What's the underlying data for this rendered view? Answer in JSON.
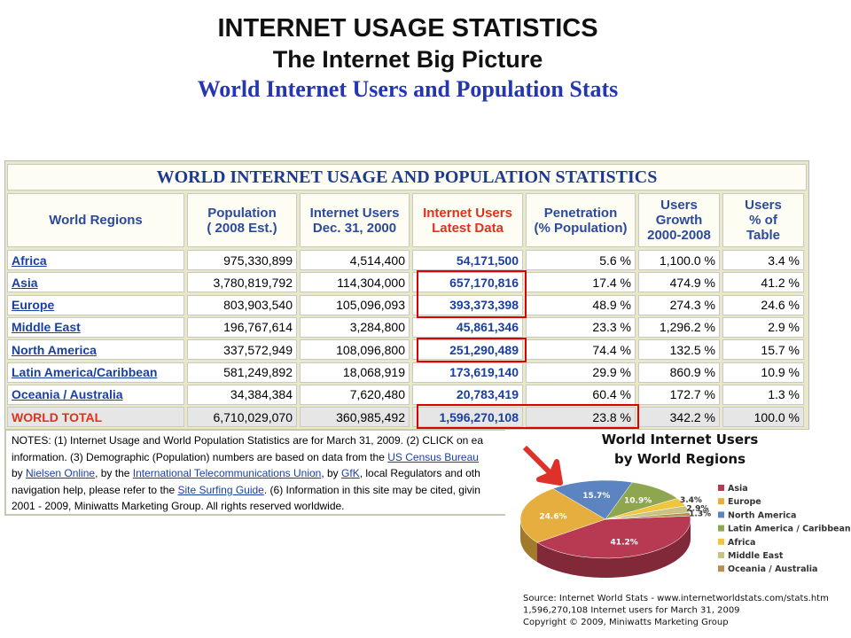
{
  "header": {
    "title": "INTERNET USAGE STATISTICS",
    "subtitle": "The Internet Big Picture",
    "heading": "World Internet Users and Population Stats"
  },
  "table": {
    "title": "WORLD INTERNET USAGE AND POPULATION STATISTICS",
    "columns": [
      "World Regions",
      "Population\n( 2008 Est.)",
      "Internet Users\nDec. 31, 2000",
      "Internet Users\nLatest Data",
      "Penetration\n(% Population)",
      "Users\nGrowth\n2000-2008",
      "Users\n% of\nTable"
    ],
    "rows": [
      [
        "Africa",
        "975,330,899",
        "4,514,400",
        "54,171,500",
        "5.6 %",
        "1,100.0 %",
        "3.4 %"
      ],
      [
        "Asia",
        "3,780,819,792",
        "114,304,000",
        "657,170,816",
        "17.4 %",
        "474.9 %",
        "41.2 %"
      ],
      [
        "Europe",
        "803,903,540",
        "105,096,093",
        "393,373,398",
        "48.9 %",
        "274.3 %",
        "24.6 %"
      ],
      [
        "Middle East",
        "196,767,614",
        "3,284,800",
        "45,861,346",
        "23.3 %",
        "1,296.2 %",
        "2.9 %"
      ],
      [
        "North America",
        "337,572,949",
        "108,096,800",
        "251,290,489",
        "74.4 %",
        "132.5 %",
        "15.7 %"
      ],
      [
        "Latin America/Caribbean",
        "581,249,892",
        "18,068,919",
        "173,619,140",
        "29.9 %",
        "860.9 %",
        "10.9 %"
      ],
      [
        "Oceania / Australia",
        "34,384,384",
        "7,620,480",
        "20,783,419",
        "60.4 %",
        "172.7 %",
        "1.3 %"
      ],
      [
        "WORLD TOTAL",
        "6,710,029,070",
        "360,985,492",
        "1,596,270,108",
        "23.8 %",
        "342.2 %",
        "100.0 %"
      ]
    ]
  },
  "notes": {
    "lines": [
      [
        "NOTES: (1) Internet Usage and World Population Statistics are for March 31, 2009. (2) CLICK on ea"
      ],
      [
        "information. (3) Demographic (Population) numbers are based on data from the ",
        {
          "link": "US Census Bureau"
        }
      ],
      [
        "by ",
        {
          "link": "Nielsen Online"
        },
        ", by the ",
        {
          "link": "International Telecommunications Union"
        },
        ", by ",
        {
          "link": "GfK"
        },
        ", local Regulators and oth"
      ],
      [
        "navigation help, please refer to the ",
        {
          "link": "Site Surfing Guide"
        },
        ". (6) Information in this site may be cited, givin"
      ],
      [
        "2001 - 2009, Miniwatts Marketing Group. All rights reserved worldwide."
      ]
    ]
  },
  "chart_data": {
    "type": "pie",
    "title": [
      "World Internet Users",
      "by World Regions"
    ],
    "series": [
      {
        "name": "Asia",
        "color": "#b83a52",
        "values": [
          41.2
        ],
        "value_labels": [
          "41.2%"
        ]
      },
      {
        "name": "Europe",
        "color": "#e6ae3e",
        "values": [
          24.6
        ],
        "value_labels": [
          "24.6%"
        ]
      },
      {
        "name": "North America",
        "color": "#5b84c0",
        "values": [
          15.7
        ],
        "value_labels": [
          "15.7%"
        ]
      },
      {
        "name": "Latin America / Caribbean",
        "color": "#8ea650",
        "values": [
          10.9
        ],
        "value_labels": [
          "10.9%"
        ]
      },
      {
        "name": "Africa",
        "color": "#f0c640",
        "values": [
          3.4
        ],
        "value_labels": [
          "3.4%"
        ]
      },
      {
        "name": "Middle East",
        "color": "#c8c282",
        "values": [
          2.9
        ],
        "value_labels": [
          "2.9%"
        ]
      },
      {
        "name": "Oceania / Australia",
        "color": "#b0904e",
        "values": [
          1.3
        ],
        "value_labels": [
          "1.3%"
        ]
      }
    ],
    "source": [
      "Source: Internet World Stats -  www.internetworldstats.com/stats.htm",
      "1,596,270,108 Internet users for March 31, 2009",
      "Copyright © 2009, Miniwatts Marketing Group"
    ]
  }
}
